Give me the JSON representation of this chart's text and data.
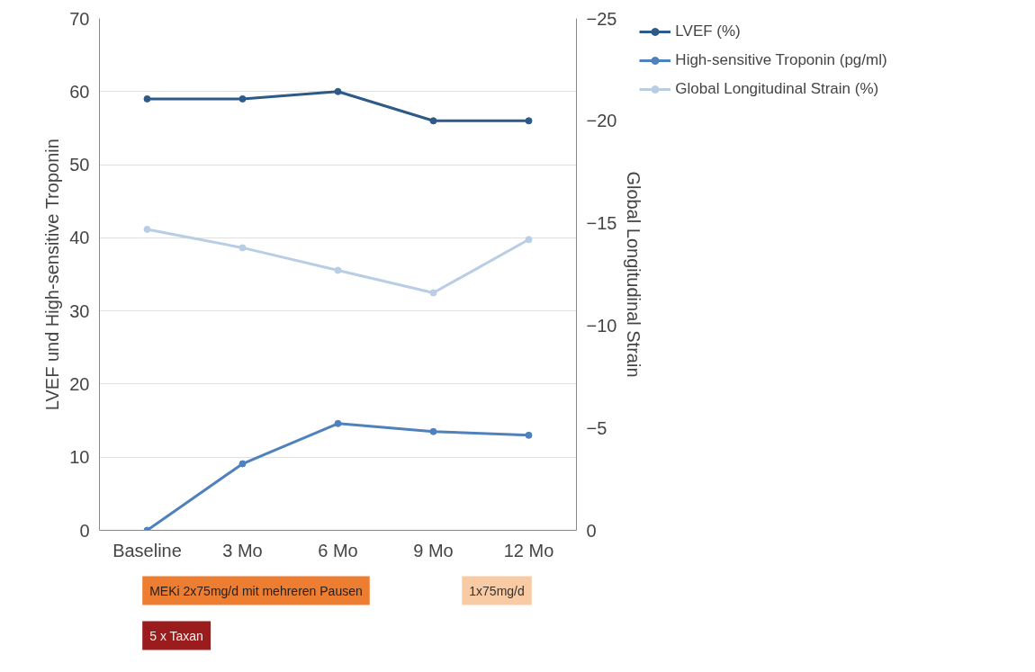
{
  "chart_data": {
    "type": "line",
    "categories": [
      "Baseline",
      "3 Mo",
      "6 Mo",
      "9 Mo",
      "12 Mo"
    ],
    "ylabel": "LVEF und High-sensitive Troponin",
    "y2label": "Global Longitudinal Strain",
    "ylim": [
      0,
      70
    ],
    "yticks": [
      0,
      10,
      20,
      30,
      40,
      50,
      60,
      70
    ],
    "y2lim": [
      0,
      -25
    ],
    "y2ticks": [
      0,
      -5,
      -10,
      -15,
      -20,
      -25
    ],
    "series": [
      {
        "name": "LVEF (%)",
        "color": "#2e5a87",
        "values": [
          59,
          59,
          60,
          56,
          56
        ]
      },
      {
        "name": "High-sensitive Troponin (pg/ml)",
        "color": "#4f81bd",
        "values": [
          0,
          9.1,
          14.6,
          13.5,
          13.0
        ]
      },
      {
        "name": "Global Longitudinal Strain (%)",
        "color": "#b9cde5",
        "axis": "y2",
        "values": [
          -14.7,
          -13.8,
          -12.7,
          -11.6,
          -14.2
        ]
      }
    ],
    "annotations": [
      "MEKi 2x75mg/d mit mehreren Pausen",
      "1x75mg/d",
      "5 x Taxan"
    ],
    "grid": "y",
    "legend": "top right",
    "marker": "circle",
    "line_style": "solid"
  }
}
